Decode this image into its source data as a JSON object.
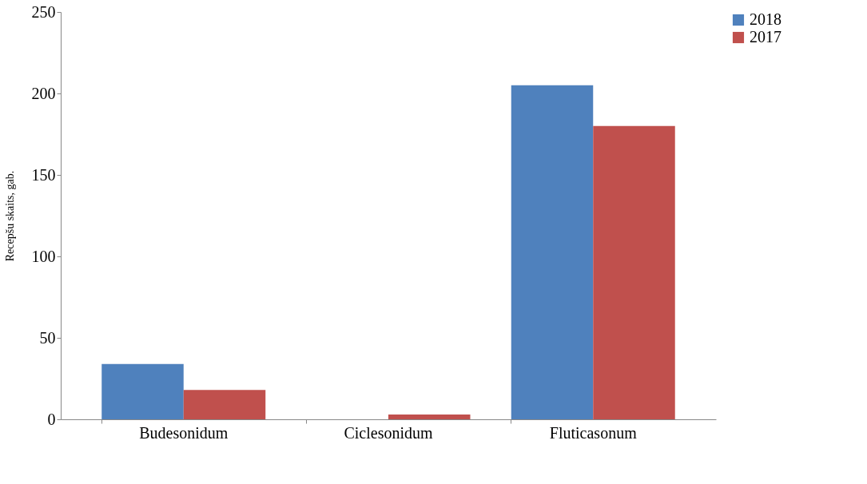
{
  "chart_data": {
    "type": "bar",
    "ylabel": "Recepšu skaits, gab.",
    "categories": [
      "Budesonidum",
      "Ciclesonidum",
      "Fluticasonum"
    ],
    "series": [
      {
        "name": "2018",
        "color": "#4f81bd",
        "values": [
          34,
          0,
          205
        ]
      },
      {
        "name": "2017",
        "color": "#c0504d",
        "values": [
          18,
          3,
          180
        ]
      }
    ],
    "ylim": [
      0,
      250
    ],
    "yticks": [
      0,
      50,
      100,
      150,
      200,
      250
    ],
    "grid": false,
    "legend": "right"
  }
}
